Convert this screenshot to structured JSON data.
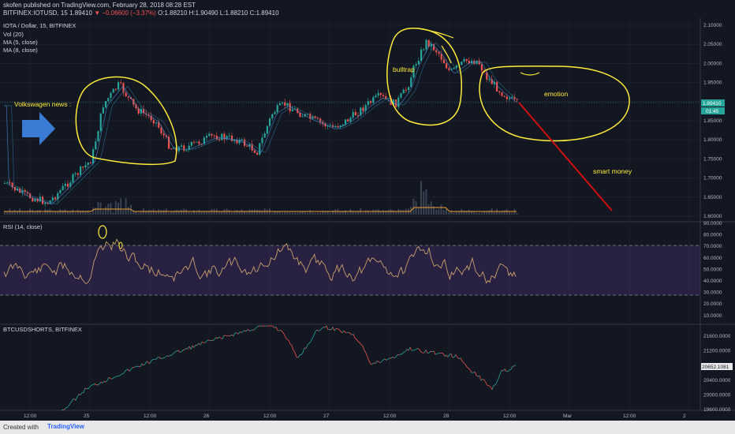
{
  "header": {
    "line1": "skofen published on TradingView.com, February 28, 2018 08:28 EST",
    "symbol": "BITFINEX:IOTUSD, 15",
    "last": "1.89410",
    "change": "▼ −0.06600 (−3.37%)",
    "ohlc": "O:1.88210 H:1.90490 L:1.88210 C:1.89410"
  },
  "price_pane": {
    "title": "IOTA / Dollar, 15, BITFINEX",
    "ind1": "Vol (20)",
    "ind2": "MA (5, close)",
    "ind3": "MA (8, close)",
    "y_ticks": [
      "2.10000",
      "2.05000",
      "2.00000",
      "1.95000",
      "1.90000",
      "1.85000",
      "1.80000",
      "1.75000",
      "1.70000",
      "1.65000",
      "1.60000"
    ],
    "price_badge": "1.89410",
    "time_badge": "01:45",
    "annotations": {
      "news": "Volkswagen news :",
      "bulltrap": "bulltrap",
      "emotion": "emotion",
      "smart": "smart money"
    }
  },
  "rsi_pane": {
    "title": "RSI (14, close)",
    "y_ticks": [
      "90.0000",
      "80.0000",
      "70.0000",
      "60.0000",
      "50.0000",
      "40.0000",
      "30.0000",
      "20.0000",
      "10.0000"
    ]
  },
  "shorts_pane": {
    "title": "BTCUSDSHORTS, BITFINEX",
    "y_ticks": [
      "21600.0000",
      "21200.0000",
      "20800.0000",
      "20400.0000",
      "20000.0000",
      "19600.0000"
    ],
    "badge": "20652.1081"
  },
  "x_axis": [
    "12:00",
    "25",
    "12:00",
    "26",
    "12:00",
    "27",
    "12:00",
    "28",
    "12:00",
    "Mar",
    "12:00",
    "2"
  ],
  "footer": {
    "created": "Created with",
    "brand": "TradingView"
  },
  "colors": {
    "up": "#26a69a",
    "down": "#ef5350",
    "annotation": "#ffeb3b",
    "rsi_line": "#c9a06c",
    "rsi_band": "#3d2a5c",
    "vol_ma": "#f0a030",
    "arrow": "#3a7bd5",
    "smart_line": "#d01010"
  }
}
